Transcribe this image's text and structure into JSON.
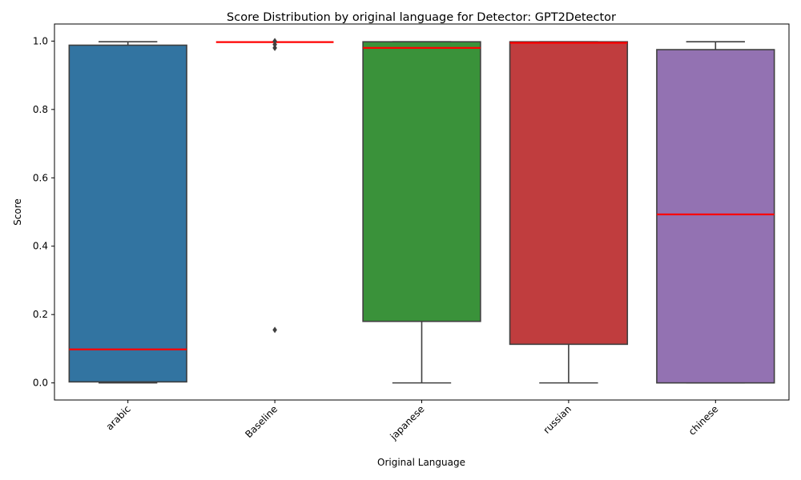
{
  "chart_data": {
    "type": "box",
    "title": "Score Distribution by original language for Detector: GPT2Detector",
    "xlabel": "Original Language",
    "ylabel": "Score",
    "ylim": [
      -0.05,
      1.05
    ],
    "yticks": [
      0.0,
      0.2,
      0.4,
      0.6,
      0.8,
      1.0
    ],
    "ytick_labels": [
      "0.0",
      "0.2",
      "0.4",
      "0.6",
      "0.8",
      "1.0"
    ],
    "median_color": "#ff0000",
    "edge_color": "#3f3f3f",
    "categories": [
      "arabic",
      "Baseline",
      "japanese",
      "russian",
      "chinese"
    ],
    "boxes": [
      {
        "category": "arabic",
        "color": "#3274a1",
        "whisker_low": 0.0,
        "q1": 0.003,
        "median": 0.098,
        "q3": 0.988,
        "whisker_high": 0.998,
        "outliers": []
      },
      {
        "category": "Baseline",
        "color": "#ffffff",
        "whisker_low": 0.997,
        "q1": 0.997,
        "median": 0.997,
        "q3": 0.997,
        "whisker_high": 0.997,
        "outliers": [
          0.155,
          0.98,
          0.99,
          1.0
        ]
      },
      {
        "category": "japanese",
        "color": "#3a923a",
        "whisker_low": 0.0,
        "q1": 0.18,
        "median": 0.98,
        "q3": 0.998,
        "whisker_high": 0.998,
        "outliers": []
      },
      {
        "category": "russian",
        "color": "#c03d3e",
        "whisker_low": 0.0,
        "q1": 0.113,
        "median": 0.995,
        "q3": 0.998,
        "whisker_high": 0.998,
        "outliers": []
      },
      {
        "category": "chinese",
        "color": "#9372b2",
        "whisker_low": 0.0,
        "q1": 0.0,
        "median": 0.493,
        "q3": 0.975,
        "whisker_high": 0.998,
        "outliers": []
      }
    ]
  }
}
